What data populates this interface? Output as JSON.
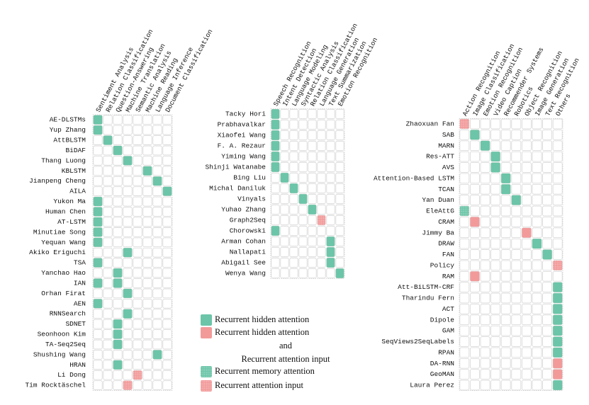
{
  "panels": [
    {
      "columns": [
        "Sentiment Analysis",
        "Relation Classification",
        "Question-Answering",
        "Machine Translation",
        "Semantic Analysis",
        "Machine Reading",
        "Language Inference",
        "Document Classification"
      ],
      "rows": [
        {
          "label": "AE-DLSTMs",
          "marks": [
            {
              "column": "Sentiment Analysis",
              "color": "#6cc5a8",
              "style": "solid"
            }
          ]
        },
        {
          "label": "Yup Zhang",
          "marks": [
            {
              "column": "Sentiment Analysis",
              "color": "#6cc5a8",
              "style": "solid"
            }
          ]
        },
        {
          "label": "AttBLSTM",
          "marks": [
            {
              "column": "Relation Classification",
              "color": "#6cc5a8",
              "style": "solid"
            }
          ]
        },
        {
          "label": "BiDAF",
          "marks": [
            {
              "column": "Question-Answering",
              "color": "#6cc5a8",
              "style": "solid"
            }
          ]
        },
        {
          "label": "Thang Luong",
          "marks": [
            {
              "column": "Machine Translation",
              "color": "#6cc5a8",
              "style": "solid"
            }
          ]
        },
        {
          "label": "KBLSTM",
          "marks": [
            {
              "column": "Machine Reading",
              "color": "#6cc5a8",
              "style": "solid"
            }
          ]
        },
        {
          "label": "Jianpeng Cheng",
          "marks": [
            {
              "column": "Language Inference",
              "color": "#6cc5a8",
              "style": "solid"
            }
          ]
        },
        {
          "label": "AILA",
          "marks": [
            {
              "column": "Document Classification",
              "color": "#6cc5a8",
              "style": "solid"
            }
          ]
        },
        {
          "label": "Yukon Ma",
          "marks": [
            {
              "column": "Sentiment Analysis",
              "color": "#6cc5a8",
              "style": "solid"
            }
          ]
        },
        {
          "label": "Human Chen",
          "marks": [
            {
              "column": "Sentiment Analysis",
              "color": "#6cc5a8",
              "style": "solid"
            }
          ]
        },
        {
          "label": "AT-LSTM",
          "marks": [
            {
              "column": "Sentiment Analysis",
              "color": "#6cc5a8",
              "style": "solid"
            }
          ]
        },
        {
          "label": "Minutiae Song",
          "marks": [
            {
              "column": "Sentiment Analysis",
              "color": "#6cc5a8",
              "style": "solid"
            }
          ]
        },
        {
          "label": "Yequan Wang",
          "marks": [
            {
              "column": "Sentiment Analysis",
              "color": "#6cc5a8",
              "style": "solid"
            }
          ]
        },
        {
          "label": "Akiko Eriguchi",
          "marks": [
            {
              "column": "Machine Translation",
              "color": "#6cc5a8",
              "style": "solid"
            }
          ]
        },
        {
          "label": "TSA",
          "marks": [
            {
              "column": "Sentiment Analysis",
              "color": "#6cc5a8",
              "style": "solid"
            }
          ]
        },
        {
          "label": "Yanchao Hao",
          "marks": [
            {
              "column": "Question-Answering",
              "color": "#6cc5a8",
              "style": "solid"
            }
          ]
        },
        {
          "label": "IAN",
          "marks": [
            {
              "column": "Sentiment Analysis",
              "color": "#6cc5a8",
              "style": "solid"
            },
            {
              "column": "Question-Answering",
              "color": "#6cc5a8",
              "style": "solid"
            }
          ]
        },
        {
          "label": "Orhan Firat",
          "marks": [
            {
              "column": "Machine Translation",
              "color": "#6cc5a8",
              "style": "solid"
            }
          ]
        },
        {
          "label": "AEN",
          "marks": [
            {
              "column": "Sentiment Analysis",
              "color": "#6cc5a8",
              "style": "solid"
            }
          ]
        },
        {
          "label": "RNNSearch",
          "marks": [
            {
              "column": "Machine Translation",
              "color": "#6cc5a8",
              "style": "solid"
            }
          ]
        },
        {
          "label": "SDNET",
          "marks": [
            {
              "column": "Question-Answering",
              "color": "#6cc5a8",
              "style": "solid"
            }
          ]
        },
        {
          "label": "Seonhoon Kim",
          "marks": [
            {
              "column": "Question-Answering",
              "color": "#6cc5a8",
              "style": "solid"
            }
          ]
        },
        {
          "label": "TA-Seq2Seq",
          "marks": [
            {
              "column": "Question-Answering",
              "color": "#6cc5a8",
              "style": "solid"
            }
          ]
        },
        {
          "label": "Shushing Wang",
          "marks": [
            {
              "column": "Language Inference",
              "color": "#6cc5a8",
              "style": "solid"
            }
          ]
        },
        {
          "label": "HRAN",
          "marks": [
            {
              "column": "Question-Answering",
              "color": "#6cc5a8",
              "style": "solid"
            }
          ]
        },
        {
          "label": "Li Dong",
          "marks": [
            {
              "column": "Semantic Analysis",
              "color": "#f29a9a",
              "style": "dotted"
            }
          ]
        },
        {
          "label": "Tim Rocktäschel",
          "marks": [
            {
              "column": "Machine Translation",
              "color": "#f29a9a",
              "style": "dotted"
            }
          ]
        }
      ]
    },
    {
      "columns": [
        "Speech Recognition",
        "Intent Detection",
        "Language Modeling",
        "Syntactic Analysis",
        "Relation Classification",
        "Language Generation",
        "Text Summarization",
        "Emotion Recognition"
      ],
      "rows": [
        {
          "label": "Tacky Hori",
          "marks": [
            {
              "column": "Speech Recognition",
              "color": "#6cc5a8",
              "style": "solid"
            }
          ]
        },
        {
          "label": "Prabhavalkar",
          "marks": [
            {
              "column": "Speech Recognition",
              "color": "#6cc5a8",
              "style": "solid"
            }
          ]
        },
        {
          "label": "Xiaofei Wang",
          "marks": [
            {
              "column": "Speech Recognition",
              "color": "#6cc5a8",
              "style": "solid"
            }
          ]
        },
        {
          "label": "F. A. Rezaur",
          "marks": [
            {
              "column": "Speech Recognition",
              "color": "#6cc5a8",
              "style": "solid"
            }
          ]
        },
        {
          "label": "Yiming Wang",
          "marks": [
            {
              "column": "Speech Recognition",
              "color": "#6cc5a8",
              "style": "solid"
            }
          ]
        },
        {
          "label": "Shinji Watanabe",
          "marks": [
            {
              "column": "Speech Recognition",
              "color": "#6cc5a8",
              "style": "solid"
            }
          ]
        },
        {
          "label": "Bing Liu",
          "marks": [
            {
              "column": "Intent Detection",
              "color": "#6cc5a8",
              "style": "solid"
            }
          ]
        },
        {
          "label": "Michal Daniluk",
          "marks": [
            {
              "column": "Language Modeling",
              "color": "#6cc5a8",
              "style": "solid"
            }
          ]
        },
        {
          "label": "Vinyals",
          "marks": [
            {
              "column": "Syntactic Analysis",
              "color": "#6cc5a8",
              "style": "solid"
            }
          ]
        },
        {
          "label": "Yuhao Zhang",
          "marks": [
            {
              "column": "Relation Classification",
              "color": "#6cc5a8",
              "style": "solid"
            }
          ]
        },
        {
          "label": "Graph2Seq",
          "marks": [
            {
              "column": "Language Generation",
              "color": "#f29a9a",
              "style": "dotted"
            }
          ]
        },
        {
          "label": "Chorowski",
          "marks": [
            {
              "column": "Speech Recognition",
              "color": "#6cc5a8",
              "style": "solid"
            }
          ]
        },
        {
          "label": "Arman Cohan",
          "marks": [
            {
              "column": "Text Summarization",
              "color": "#6cc5a8",
              "style": "solid"
            }
          ]
        },
        {
          "label": "Nallapati",
          "marks": [
            {
              "column": "Text Summarization",
              "color": "#6cc5a8",
              "style": "solid"
            }
          ]
        },
        {
          "label": "Abigail See",
          "marks": [
            {
              "column": "Text Summarization",
              "color": "#6cc5a8",
              "style": "solid"
            }
          ]
        },
        {
          "label": "Wenya Wang",
          "marks": [
            {
              "column": "Emotion Recognition",
              "color": "#6cc5a8",
              "style": "solid"
            }
          ]
        }
      ]
    },
    {
      "columns": [
        "Action Recognition",
        "Image Classification",
        "Emotion Recognition",
        "Video Caption",
        "Recommender Systems",
        "Robotics",
        "Object Recognition",
        "Image Generation",
        "Text Recognition",
        "Others"
      ],
      "rows": [
        {
          "label": "Zhaoxuan Fan",
          "marks": [
            {
              "column": "Action Recognition",
              "color": "#f29a9a",
              "style": "dotted"
            }
          ]
        },
        {
          "label": "SAB",
          "marks": [
            {
              "column": "Image Classification",
              "color": "#6cc5a8",
              "style": "solid"
            }
          ]
        },
        {
          "label": "MARN",
          "marks": [
            {
              "column": "Emotion Recognition",
              "color": "#6cc5a8",
              "style": "solid"
            }
          ]
        },
        {
          "label": "Res-ATT",
          "marks": [
            {
              "column": "Video Caption",
              "color": "#6cc5a8",
              "style": "solid"
            }
          ]
        },
        {
          "label": "AVS",
          "marks": [
            {
              "column": "Video Caption",
              "color": "#6cc5a8",
              "style": "solid"
            }
          ]
        },
        {
          "label": "Attention-Based LSTM",
          "marks": [
            {
              "column": "Recommender Systems",
              "color": "#6cc5a8",
              "style": "solid"
            }
          ]
        },
        {
          "label": "TCAN",
          "marks": [
            {
              "column": "Recommender Systems",
              "color": "#6cc5a8",
              "style": "solid"
            }
          ]
        },
        {
          "label": "Yan Duan",
          "marks": [
            {
              "column": "Robotics",
              "color": "#6cc5a8",
              "style": "solid"
            }
          ]
        },
        {
          "label": "EleAttG",
          "marks": [
            {
              "column": "Action Recognition",
              "color": "#6cc5a8",
              "style": "dotted"
            }
          ]
        },
        {
          "label": "CRAM",
          "marks": [
            {
              "column": "Image Classification",
              "color": "#f29a9a",
              "style": "solid"
            }
          ]
        },
        {
          "label": "Jimmy Ba",
          "marks": [
            {
              "column": "Object Recognition",
              "color": "#f29a9a",
              "style": "solid"
            }
          ]
        },
        {
          "label": "DRAW",
          "marks": [
            {
              "column": "Image Generation",
              "color": "#6cc5a8",
              "style": "solid"
            }
          ]
        },
        {
          "label": "FAN",
          "marks": [
            {
              "column": "Text Recognition",
              "color": "#6cc5a8",
              "style": "solid"
            }
          ]
        },
        {
          "label": "Policy",
          "marks": [
            {
              "column": "Others",
              "color": "#f29a9a",
              "style": "dotted"
            }
          ]
        },
        {
          "label": "RAM",
          "marks": [
            {
              "column": "Image Classification",
              "color": "#f29a9a",
              "style": "solid"
            }
          ]
        },
        {
          "label": "Att-BiLSTM-CRF",
          "marks": [
            {
              "column": "Others",
              "color": "#6cc5a8",
              "style": "solid"
            }
          ]
        },
        {
          "label": "Tharindu Fern",
          "marks": [
            {
              "column": "Others",
              "color": "#6cc5a8",
              "style": "solid"
            }
          ]
        },
        {
          "label": "ACT",
          "marks": [
            {
              "column": "Others",
              "color": "#6cc5a8",
              "style": "solid"
            }
          ]
        },
        {
          "label": "Dipole",
          "marks": [
            {
              "column": "Others",
              "color": "#6cc5a8",
              "style": "solid"
            }
          ]
        },
        {
          "label": "GAM",
          "marks": [
            {
              "column": "Others",
              "color": "#6cc5a8",
              "style": "solid"
            }
          ]
        },
        {
          "label": "SeqViews2SeqLabels",
          "marks": [
            {
              "column": "Others",
              "color": "#6cc5a8",
              "style": "solid"
            }
          ]
        },
        {
          "label": "RPAN",
          "marks": [
            {
              "column": "Others",
              "color": "#6cc5a8",
              "style": "solid"
            }
          ]
        },
        {
          "label": "DA-RNN",
          "marks": [
            {
              "column": "Others",
              "color": "#f29a9a",
              "style": "solid"
            }
          ]
        },
        {
          "label": "GeoMAN",
          "marks": [
            {
              "column": "Others",
              "color": "#f29a9a",
              "style": "solid"
            }
          ]
        },
        {
          "label": "Laura Perez",
          "marks": [
            {
              "column": "Others",
              "color": "#6cc5a8",
              "style": "solid"
            }
          ]
        }
      ]
    }
  ],
  "legend": [
    {
      "lines": [
        "Recurrent hidden attention"
      ],
      "color": "#6cc5a8",
      "style": "solid"
    },
    {
      "lines": [
        "Recurrent hidden attention",
        "and",
        "Recurrent attention input"
      ],
      "color": "#f29a9a",
      "style": "solid"
    },
    {
      "lines": [
        "Recurrent memory attention"
      ],
      "color": "#6cc5a8",
      "style": "dotted"
    },
    {
      "lines": [
        "Recurrent attention input"
      ],
      "color": "#f29a9a",
      "style": "dotted"
    }
  ]
}
